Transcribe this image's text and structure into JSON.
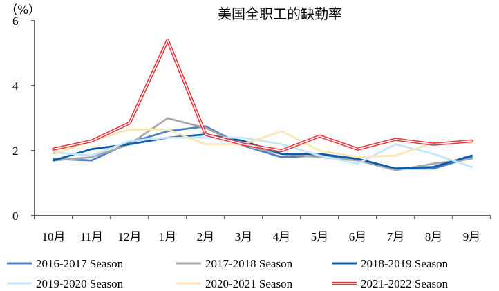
{
  "chart_data": {
    "type": "line",
    "title": "美国全职工的缺勤率",
    "unit_label": "（%）",
    "xlabel": "",
    "ylabel": "",
    "categories": [
      "10月",
      "11月",
      "12月",
      "1月",
      "2月",
      "3月",
      "4月",
      "5月",
      "6月",
      "7月",
      "8月",
      "9月"
    ],
    "ylim": [
      0,
      6
    ],
    "yticks": [
      0,
      2,
      4,
      6
    ],
    "grid": false,
    "legend_position": "bottom",
    "series": [
      {
        "name": "2016-2017 Season",
        "color": "#4f7fc9",
        "style": "solid",
        "values": [
          1.75,
          1.7,
          2.25,
          2.6,
          2.75,
          2.15,
          1.8,
          1.85,
          1.75,
          1.45,
          1.45,
          1.8
        ]
      },
      {
        "name": "2017-2018 Season",
        "color": "#a8a8a8",
        "style": "solid",
        "values": [
          1.7,
          1.8,
          2.2,
          3.0,
          2.7,
          2.15,
          1.9,
          1.8,
          1.7,
          1.4,
          1.6,
          1.75
        ]
      },
      {
        "name": "2018-2019 Season",
        "color": "#0b5cad",
        "style": "solid",
        "values": [
          1.7,
          2.05,
          2.2,
          2.4,
          2.5,
          2.3,
          1.9,
          1.9,
          1.75,
          1.45,
          1.5,
          1.85
        ]
      },
      {
        "name": "2019-2020 Season",
        "color": "#c5e6f8",
        "style": "solid",
        "values": [
          1.95,
          1.85,
          2.3,
          2.4,
          2.4,
          2.4,
          2.2,
          1.85,
          1.6,
          2.2,
          1.9,
          1.5
        ]
      },
      {
        "name": "2020-2021 Season",
        "color": "#fbe6b3",
        "style": "solid",
        "values": [
          1.9,
          2.3,
          2.65,
          2.65,
          2.2,
          2.2,
          2.6,
          2.0,
          1.8,
          1.85,
          2.25,
          2.25
        ]
      },
      {
        "name": "2021-2022 Season",
        "color": "#e8343a",
        "style": "double",
        "values": [
          2.05,
          2.3,
          2.85,
          5.4,
          2.5,
          2.2,
          2.0,
          2.45,
          2.05,
          2.35,
          2.2,
          2.3
        ]
      }
    ]
  }
}
